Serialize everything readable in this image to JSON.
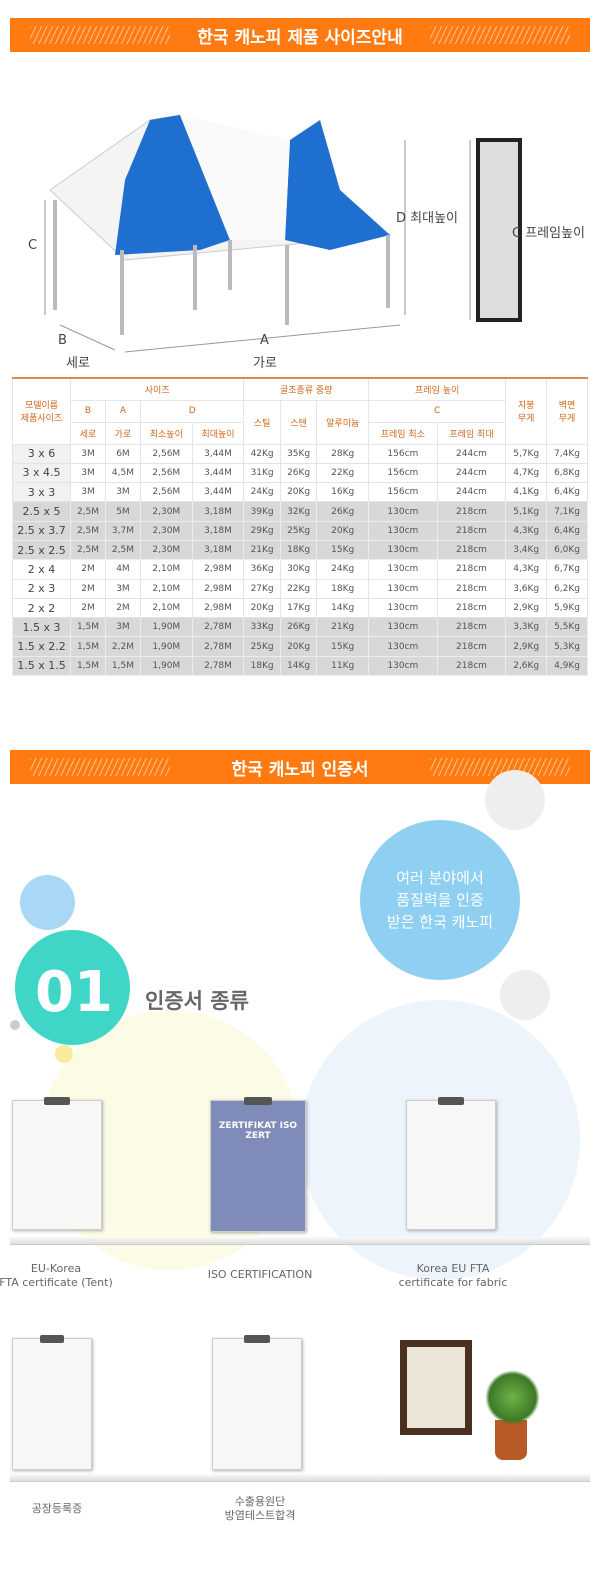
{
  "section1": {
    "title": "한국 캐노피 제품 사이즈안내"
  },
  "diagram": {
    "label_c": "C",
    "label_d": "D 최대높이",
    "label_frame": "C 프레임높이",
    "label_b": "B",
    "label_b_name": "세로",
    "label_a": "A",
    "label_a_name": "가로"
  },
  "table": {
    "h_model": "모델이름\n제품사이즈",
    "h_size": "사이즈",
    "h_weight": "골조종류 중량",
    "h_frame": "프레임 높이",
    "h_roof": "지붕\n무게",
    "h_wall": "벽면\n무게",
    "h_b": "B",
    "h_a": "A",
    "h_d": "D",
    "h_c": "C",
    "h_sero": "세로",
    "h_garo": "가로",
    "h_min": "최소높이",
    "h_max": "최대높이",
    "h_steel": "스틸",
    "h_sten": "스텐",
    "h_alu": "알루미늄",
    "h_fmin": "프레임 최소",
    "h_fmax": "프레임 최대",
    "rows": [
      [
        "3 x 6",
        "3M",
        "6M",
        "2,56M",
        "3,44M",
        "42Kg",
        "35Kg",
        "28Kg",
        "156cm",
        "244cm",
        "5,7Kg",
        "7,4Kg"
      ],
      [
        "3 x 4.5",
        "3M",
        "4,5M",
        "2,56M",
        "3,44M",
        "31Kg",
        "26Kg",
        "22Kg",
        "156cm",
        "244cm",
        "4,7Kg",
        "6,8Kg"
      ],
      [
        "3 x 3",
        "3M",
        "3M",
        "2,56M",
        "3,44M",
        "24Kg",
        "20Kg",
        "16Kg",
        "156cm",
        "244cm",
        "4,1Kg",
        "6,4Kg"
      ],
      [
        "2.5 x 5",
        "2,5M",
        "5M",
        "2,30M",
        "3,18M",
        "39Kg",
        "32Kg",
        "26Kg",
        "130cm",
        "218cm",
        "5,1Kg",
        "7,1Kg"
      ],
      [
        "2.5 x 3.7",
        "2,5M",
        "3,7M",
        "2,30M",
        "3,18M",
        "29Kg",
        "25Kg",
        "20Kg",
        "130cm",
        "218cm",
        "4,3Kg",
        "6,4Kg"
      ],
      [
        "2.5 x 2.5",
        "2,5M",
        "2,5M",
        "2,30M",
        "3,18M",
        "21Kg",
        "18Kg",
        "15Kg",
        "130cm",
        "218cm",
        "3,4Kg",
        "6,0Kg"
      ],
      [
        "2 x 4",
        "2M",
        "4M",
        "2,10M",
        "2,98M",
        "36Kg",
        "30Kg",
        "24Kg",
        "130cm",
        "218cm",
        "4,3Kg",
        "6,7Kg"
      ],
      [
        "2 x 3",
        "2M",
        "3M",
        "2,10M",
        "2,98M",
        "27Kg",
        "22Kg",
        "18Kg",
        "130cm",
        "218cm",
        "3,6Kg",
        "6,2Kg"
      ],
      [
        "2 x 2",
        "2M",
        "2M",
        "2,10M",
        "2,98M",
        "20Kg",
        "17Kg",
        "14Kg",
        "130cm",
        "218cm",
        "2,9Kg",
        "5,9Kg"
      ],
      [
        "1.5 x 3",
        "1,5M",
        "3M",
        "1,90M",
        "2,78M",
        "33Kg",
        "26Kg",
        "21Kg",
        "130cm",
        "218cm",
        "3,3Kg",
        "5,5Kg"
      ],
      [
        "1.5 x 2.2",
        "1,5M",
        "2,2M",
        "1,90M",
        "2,78M",
        "25Kg",
        "20Kg",
        "15Kg",
        "130cm",
        "218cm",
        "2,9Kg",
        "5,3Kg"
      ],
      [
        "1.5 x 1.5",
        "1,5M",
        "1,5M",
        "1,90M",
        "2,78M",
        "18Kg",
        "14Kg",
        "11Kg",
        "130cm",
        "218cm",
        "2,6Kg",
        "4,9Kg"
      ]
    ]
  },
  "section2": {
    "title": "한국 캐노피 인증서",
    "bubble": "여러 분야에서\n품질력을 인증\n받은 한국 캐노피",
    "num": "01",
    "heading": "인증서 종류"
  },
  "certs": [
    {
      "caption": "EU-Korea\nFTA certificate (Tent)"
    },
    {
      "caption": "ISO CERTIFICATION",
      "logo": "ZERTIFIKAT ISO ZERT"
    },
    {
      "caption": "Korea EU FTA\ncertificate for fabric"
    },
    {
      "caption": "공장등록증"
    },
    {
      "caption": "수출용원단\n방염테스트합격"
    }
  ],
  "colors": {
    "accent": "#ff7a10",
    "blue": "#1f6fd1",
    "teal": "#3fd6c8"
  }
}
